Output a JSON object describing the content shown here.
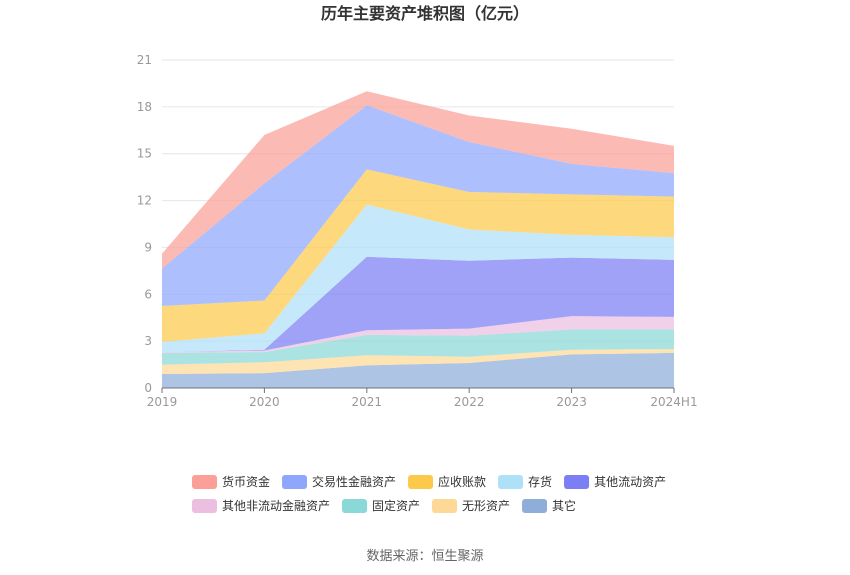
{
  "chart_data": {
    "type": "area",
    "stacked": true,
    "title": "历年主要资产堆积图（亿元）",
    "source": "数据来源：恒生聚源",
    "categories": [
      "2019",
      "2020",
      "2021",
      "2022",
      "2023",
      "2024H1"
    ],
    "ylim": [
      0,
      21
    ],
    "yticks": [
      0,
      3,
      6,
      9,
      12,
      15,
      18,
      21
    ],
    "grid": true,
    "legend_position": "bottom",
    "series": [
      {
        "name": "其它",
        "color": "#8fadd9",
        "values": [
          0.9,
          0.95,
          1.45,
          1.6,
          2.15,
          2.25
        ]
      },
      {
        "name": "无形资产",
        "color": "#fed896",
        "values": [
          0.6,
          0.7,
          0.65,
          0.4,
          0.3,
          0.25
        ]
      },
      {
        "name": "固定资产",
        "color": "#8ad8d8",
        "values": [
          0.75,
          0.65,
          1.3,
          1.35,
          1.3,
          1.25
        ]
      },
      {
        "name": "其他非流动金融资产",
        "color": "#ecbfe0",
        "values": [
          0.05,
          0.1,
          0.3,
          0.45,
          0.85,
          0.8
        ]
      },
      {
        "name": "其他流动资产",
        "color": "#7c7ef5",
        "values": [
          0.0,
          0.05,
          4.7,
          4.35,
          3.75,
          3.65
        ]
      },
      {
        "name": "存货",
        "color": "#aee1f8",
        "values": [
          0.65,
          1.05,
          3.35,
          2.0,
          1.45,
          1.45
        ]
      },
      {
        "name": "应收账款",
        "color": "#fdc94a",
        "values": [
          2.3,
          2.1,
          2.25,
          2.4,
          2.6,
          2.6
        ]
      },
      {
        "name": "交易性金融资产",
        "color": "#8ea6fc",
        "values": [
          2.4,
          7.5,
          4.1,
          3.2,
          1.95,
          1.5
        ]
      },
      {
        "name": "货币资金",
        "color": "#fb9f98",
        "values": [
          0.95,
          3.1,
          0.9,
          1.7,
          2.25,
          1.75
        ]
      }
    ]
  }
}
